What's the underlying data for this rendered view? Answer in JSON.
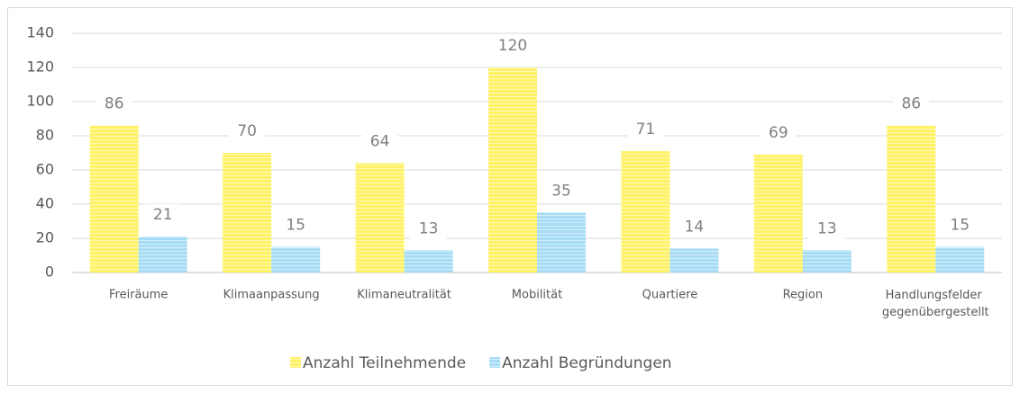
{
  "chart_data": {
    "type": "bar",
    "categories": [
      "Freiräume",
      "Klimaanpassung",
      "Klimaneutralität",
      "Mobilität",
      "Quartiere",
      "Region",
      "Handlungsfelder gegenübergestellt"
    ],
    "series": [
      {
        "name": "Anzahl Teilnehmende",
        "color": "#fff266",
        "values": [
          86,
          70,
          64,
          120,
          71,
          69,
          86
        ]
      },
      {
        "name": "Anzahl Begründungen",
        "color": "#a6dcf5",
        "values": [
          21,
          15,
          13,
          35,
          14,
          13,
          15
        ]
      }
    ],
    "ylim": [
      0,
      140
    ],
    "yticks": [
      0,
      20,
      40,
      60,
      80,
      100,
      120,
      140
    ],
    "grid": true,
    "legend": "bottom"
  }
}
